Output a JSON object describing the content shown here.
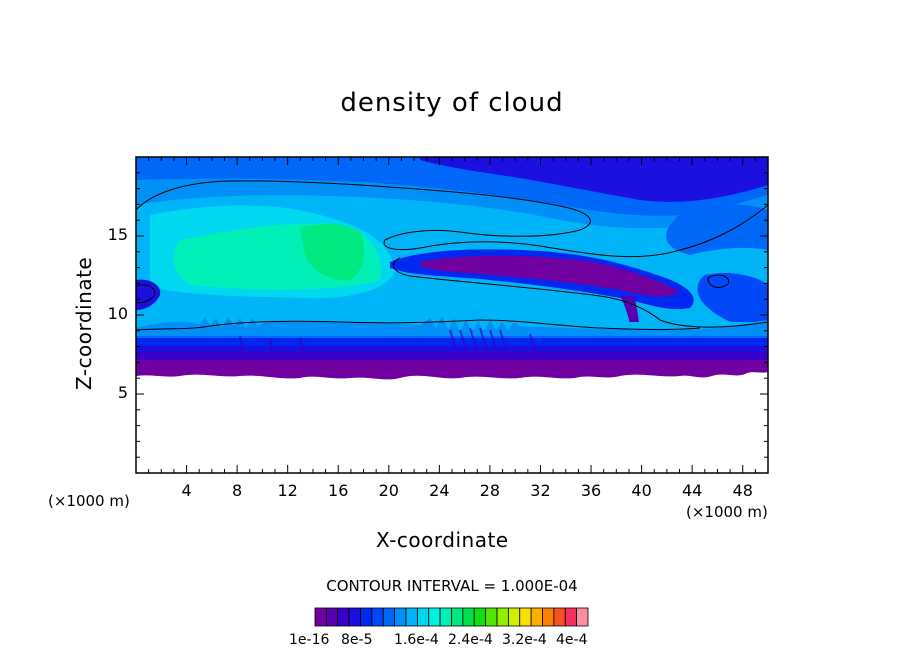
{
  "chart_data": {
    "type": "heatmap",
    "title": "density of cloud",
    "xlabel": "X-coordinate",
    "ylabel": "Z-coordinate",
    "x_unit_left": "(×1000 m)",
    "x_unit_right": "(×1000 m)",
    "xlim": [
      0,
      50
    ],
    "ylim": [
      0,
      20
    ],
    "x_ticks": [
      "4",
      "8",
      "12",
      "16",
      "20",
      "24",
      "28",
      "32",
      "36",
      "40",
      "44",
      "48"
    ],
    "y_ticks": [
      "5",
      "10",
      "15"
    ],
    "x_tick_values": [
      4,
      8,
      12,
      16,
      20,
      24,
      28,
      32,
      36,
      40,
      44,
      48
    ],
    "y_tick_values": [
      5,
      10,
      15
    ],
    "contour_interval": "CONTOUR INTERVAL = 1.000E-04",
    "colorbar_labels": [
      "1e-16",
      "8e-5",
      "1.6e-4",
      "2.4e-4",
      "3.2e-4",
      "4e-4"
    ],
    "colorbar_levels": 24,
    "colorbar_colors": [
      "#7000a0",
      "#5800b0",
      "#3a00c8",
      "#1c10e0",
      "#0028f0",
      "#0048f8",
      "#0068f8",
      "#0090f8",
      "#00b4f8",
      "#00d8f0",
      "#00f0e0",
      "#00f0b8",
      "#00e880",
      "#00e048",
      "#10e010",
      "#50e800",
      "#90f000",
      "#d0f000",
      "#f8e000",
      "#f8b000",
      "#f88000",
      "#f85020",
      "#f83060",
      "#f890a0"
    ],
    "field_description": "cloud layer between z=6 and z=19.5 km",
    "colors": {
      "frame": "#000000",
      "background": "#ffffff"
    }
  }
}
